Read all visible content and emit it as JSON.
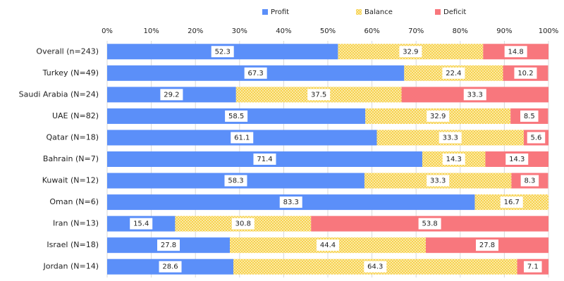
{
  "chart_data": {
    "type": "stacked-barh",
    "categories": [
      "Overall (n=243)",
      "Turkey (N=49)",
      "Saudi Arabia (N=24)",
      "UAE (N=82)",
      "Qatar (N=18)",
      "Bahrain (N=7)",
      "Kuwait (N=12)",
      "Oman (N=6)",
      "Iran (N=13)",
      "Israel (N=18)",
      "Jordan (N=14)"
    ],
    "series": [
      {
        "name": "Profit",
        "color": "#5b8ff9",
        "values": [
          52.3,
          67.3,
          29.2,
          58.5,
          61.1,
          71.4,
          58.3,
          83.3,
          15.4,
          27.8,
          28.6
        ]
      },
      {
        "name": "Balance",
        "color": "#f7d24e",
        "pattern": "checker",
        "values": [
          32.9,
          22.4,
          37.5,
          32.9,
          33.3,
          14.3,
          33.3,
          16.7,
          30.8,
          44.4,
          64.3
        ]
      },
      {
        "name": "Deficit",
        "color": "#f8777d",
        "values": [
          14.8,
          10.2,
          33.3,
          8.5,
          5.6,
          14.3,
          8.3,
          null,
          53.8,
          27.8,
          7.1
        ]
      }
    ],
    "xlim": [
      0,
      100
    ],
    "xticks": [
      {
        "value": 0,
        "label": "0%"
      },
      {
        "value": 10,
        "label": "10%"
      },
      {
        "value": 20,
        "label": "20%"
      },
      {
        "value": 30,
        "label": "30%"
      },
      {
        "value": 40,
        "label": "40%"
      },
      {
        "value": 50,
        "label": "50%"
      },
      {
        "value": 60,
        "label": "60%"
      },
      {
        "value": 70,
        "label": "70%"
      },
      {
        "value": 80,
        "label": "80%"
      },
      {
        "value": 90,
        "label": "90%"
      },
      {
        "value": 100,
        "label": "100%"
      }
    ],
    "grid": true,
    "legend": "top"
  }
}
